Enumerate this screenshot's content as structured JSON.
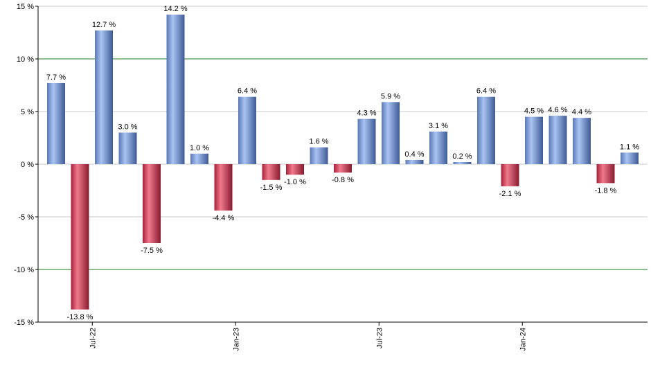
{
  "colors": {
    "positive": "#6f93d8",
    "negative": "#c8374f",
    "grid": "#c8c8c8",
    "ref_line": "#1b7a1b",
    "axis": "#000000"
  },
  "chart_data": {
    "type": "bar",
    "title": "",
    "xlabel": "",
    "ylabel": "",
    "ylim": [
      -15,
      15
    ],
    "y_ticks": [
      15,
      10,
      5,
      0,
      -5,
      -10,
      -15
    ],
    "y_tick_labels": [
      "15 %",
      "10 %",
      "5 %",
      "0 %",
      "-5 %",
      "-10 %",
      "-15 %"
    ],
    "reference_lines": [
      10,
      -10
    ],
    "grid": true,
    "legend": "none",
    "x_tick_labels": [
      "Jul-22",
      "Jan-23",
      "Jul-23",
      "Jan-24"
    ],
    "x_tick_positions": [
      2,
      8,
      14,
      20
    ],
    "values": [
      7.7,
      -13.8,
      12.7,
      3.0,
      -7.5,
      14.2,
      1.0,
      -4.4,
      6.4,
      -1.5,
      -1.0,
      1.6,
      -0.8,
      4.3,
      5.9,
      0.4,
      3.1,
      0.2,
      6.4,
      -2.1,
      4.5,
      4.6,
      4.4,
      -1.8,
      1.1
    ],
    "labels": [
      "7.7 %",
      "-13.8 %",
      "12.7 %",
      "3.0 %",
      "-7.5 %",
      "14.2 %",
      "1.0 %",
      "-4.4 %",
      "6.4 %",
      "-1.5 %",
      "-1.0 %",
      "1.6 %",
      "-0.8 %",
      "4.3 %",
      "5.9 %",
      "0.4 %",
      "3.1 %",
      "0.2 %",
      "6.4 %",
      "-2.1 %",
      "4.5 %",
      "4.6 %",
      "4.4 %",
      "-1.8 %",
      "1.1 %"
    ]
  }
}
